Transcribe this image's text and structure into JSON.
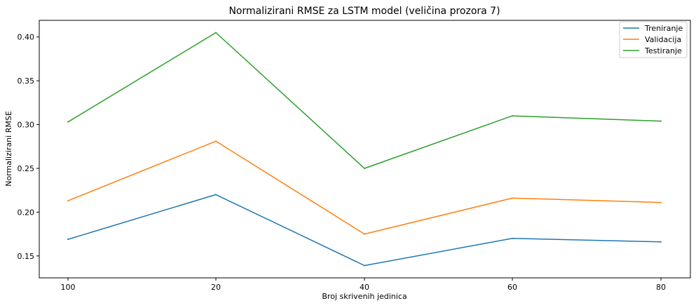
{
  "chart_data": {
    "type": "line",
    "title": "Normalizirani RMSE za LSTM model (veličina prozora 7)",
    "xlabel": "Broj skrivenih jedinica",
    "ylabel": "Normalizirani RMSE",
    "categories": [
      "100",
      "20",
      "40",
      "60",
      "80"
    ],
    "ylim": [
      0.125,
      0.419
    ],
    "yticks": [
      "0.15",
      "0.20",
      "0.25",
      "0.30",
      "0.35",
      "0.40"
    ],
    "legend_position": "top-right",
    "grid": false,
    "series": [
      {
        "name": "Treniranje",
        "color": "#1f77b4",
        "values": [
          0.169,
          0.22,
          0.139,
          0.17,
          0.166
        ]
      },
      {
        "name": "Validacija",
        "color": "#ff7f0e",
        "values": [
          0.213,
          0.281,
          0.175,
          0.216,
          0.211
        ]
      },
      {
        "name": "Testiranje",
        "color": "#2ca02c",
        "values": [
          0.303,
          0.405,
          0.25,
          0.31,
          0.304
        ]
      }
    ]
  }
}
